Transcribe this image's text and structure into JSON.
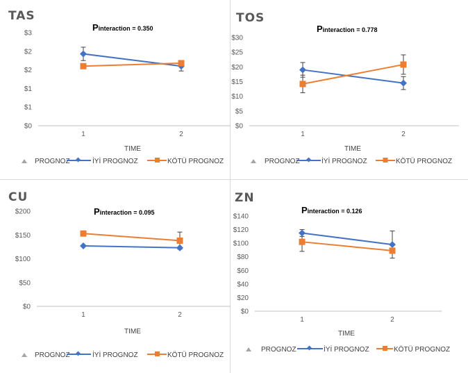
{
  "legend": {
    "label_triangle": "PROGNOZ",
    "label_good": "İYİ PROGNOZ",
    "label_bad": "KÖTÜ PROGNOZ",
    "color_good": "#4472C4",
    "color_bad": "#ED7D31",
    "color_triangle": "#A5A5A5"
  },
  "chart_data": [
    {
      "type": "line",
      "title": "TAS",
      "annotation_main": "P",
      "annotation_sub": "interaction",
      "annotation_value": " = 0.350",
      "xlabel": "TIME",
      "categories": [
        "1",
        "2"
      ],
      "ytick_labels": [
        "$0",
        "$1",
        "$1",
        "$2",
        "$2",
        "$3"
      ],
      "ytick_values": [
        0,
        0.5,
        1,
        1.5,
        2,
        2.5
      ],
      "ylim": [
        0,
        2.5
      ],
      "series": [
        {
          "name": "İYİ PROGNOZ",
          "values": [
            1.93,
            1.6
          ],
          "error": [
            0.18,
            0.13
          ]
        },
        {
          "name": "KÖTÜ PROGNOZ",
          "values": [
            1.6,
            1.68
          ],
          "error": [
            0,
            0
          ]
        }
      ]
    },
    {
      "type": "line",
      "title": "TOS",
      "annotation_main": "P",
      "annotation_sub": "interaction",
      "annotation_value": " = 0.778",
      "xlabel": "TIME",
      "categories": [
        "1",
        "2"
      ],
      "ytick_labels": [
        "$0",
        "$5",
        "$10",
        "$15",
        "$20",
        "$25",
        "$30"
      ],
      "ytick_values": [
        0,
        5,
        10,
        15,
        20,
        25,
        30
      ],
      "ylim": [
        0,
        30
      ],
      "series": [
        {
          "name": "İYİ PROGNOZ",
          "values": [
            19,
            14.5
          ],
          "error": [
            2.5,
            2.2
          ]
        },
        {
          "name": "KÖTÜ PROGNOZ",
          "values": [
            14.2,
            20.8
          ],
          "error": [
            3.0,
            3.3
          ]
        }
      ]
    },
    {
      "type": "line",
      "title": "CU",
      "annotation_main": "P",
      "annotation_sub": "interaction",
      "annotation_value": " = 0.095",
      "xlabel": "TIME",
      "categories": [
        "1",
        "2"
      ],
      "ytick_labels": [
        "$0",
        "$50",
        "$100",
        "$150",
        "$200"
      ],
      "ytick_values": [
        0,
        50,
        100,
        150,
        200
      ],
      "ylim": [
        0,
        200
      ],
      "series": [
        {
          "name": "İYİ PROGNOZ",
          "values": [
            127,
            123
          ],
          "error": [
            0,
            0
          ]
        },
        {
          "name": "KÖTÜ PROGNOZ",
          "values": [
            153,
            138
          ],
          "error": [
            0,
            18
          ]
        }
      ]
    },
    {
      "type": "line",
      "title": "ZN",
      "annotation_main": "P",
      "annotation_sub": "interaction",
      "annotation_value": " = 0.126",
      "xlabel": "TIME",
      "categories": [
        "1",
        "2"
      ],
      "ytick_labels": [
        "$0",
        "$20",
        "$40",
        "$60",
        "$80",
        "$100",
        "$120",
        "$140"
      ],
      "ytick_values": [
        0,
        20,
        40,
        60,
        80,
        100,
        120,
        140
      ],
      "ylim": [
        0,
        140
      ],
      "series": [
        {
          "name": "İYİ PROGNOZ",
          "values": [
            115,
            98
          ],
          "error": [
            5,
            20
          ]
        },
        {
          "name": "KÖTÜ PROGNOZ",
          "values": [
            102,
            89
          ],
          "error": [
            14,
            0
          ]
        }
      ]
    }
  ]
}
